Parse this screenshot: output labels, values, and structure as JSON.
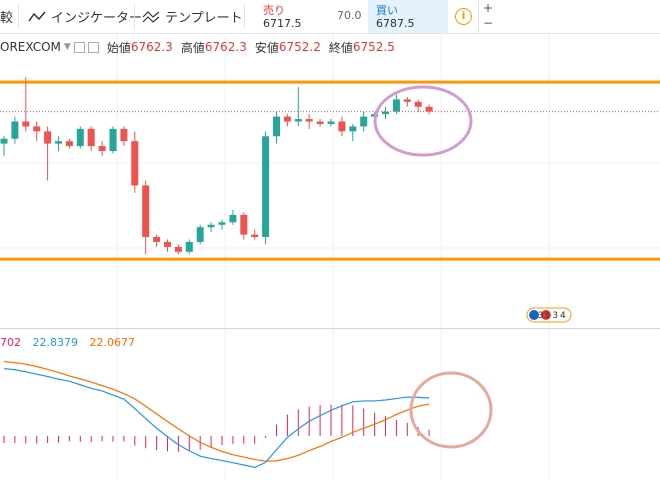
{
  "toolbar": {
    "compare_label": "較",
    "indicators_label": "インジケーター",
    "templates_label": "テンプレート"
  },
  "trade": {
    "sell_label": "売り",
    "sell_price": "6717.5",
    "spread": "70.0",
    "buy_label": "買い",
    "buy_price": "6787.5"
  },
  "zoom": {
    "plus": "+",
    "minus": "−"
  },
  "legend": {
    "symbol": "OREXCOM",
    "open_label": "始値",
    "open": "6762.3",
    "high_label": "高値",
    "high": "6762.3",
    "low_label": "安値",
    "low": "6752.2",
    "close_label": "終値",
    "close": "6752.5"
  },
  "event_badge": {
    "text": "33 3",
    "count": "4"
  },
  "macd_legend": {
    "hist": "702",
    "macd": "22.8379",
    "signal": "22.0677"
  },
  "colors": {
    "up": "#26a69a",
    "down": "#ef5350",
    "orange_line": "#ff9800",
    "macd_line": "#2196f3",
    "signal_line": "#ff6d00",
    "hist": "#e91e63",
    "ellipse_top": "#d59bd0",
    "ellipse_bottom": "#e8a899"
  },
  "chart_data": {
    "type": "candlestick",
    "candles": [
      {
        "o": 6755,
        "h": 6758,
        "l": 6750,
        "c": 6757
      },
      {
        "o": 6757,
        "h": 6766,
        "l": 6755,
        "c": 6764
      },
      {
        "o": 6764,
        "h": 6782,
        "l": 6760,
        "c": 6762
      },
      {
        "o": 6762,
        "h": 6764,
        "l": 6756,
        "c": 6760
      },
      {
        "o": 6760,
        "h": 6762,
        "l": 6740,
        "c": 6755
      },
      {
        "o": 6755,
        "h": 6758,
        "l": 6752,
        "c": 6756
      },
      {
        "o": 6756,
        "h": 6757,
        "l": 6753,
        "c": 6754
      },
      {
        "o": 6754,
        "h": 6762,
        "l": 6753,
        "c": 6761
      },
      {
        "o": 6761,
        "h": 6762,
        "l": 6752,
        "c": 6754
      },
      {
        "o": 6754,
        "h": 6756,
        "l": 6750,
        "c": 6752
      },
      {
        "o": 6752,
        "h": 6762,
        "l": 6751,
        "c": 6761
      },
      {
        "o": 6761,
        "h": 6762,
        "l": 6754,
        "c": 6756
      },
      {
        "o": 6756,
        "h": 6760,
        "l": 6735,
        "c": 6738
      },
      {
        "o": 6738,
        "h": 6740,
        "l": 6710,
        "c": 6717
      },
      {
        "o": 6717,
        "h": 6718,
        "l": 6713,
        "c": 6715
      },
      {
        "o": 6715,
        "h": 6716,
        "l": 6711,
        "c": 6713
      },
      {
        "o": 6713,
        "h": 6714,
        "l": 6710,
        "c": 6711
      },
      {
        "o": 6711,
        "h": 6716,
        "l": 6710,
        "c": 6715
      },
      {
        "o": 6715,
        "h": 6722,
        "l": 6714,
        "c": 6721
      },
      {
        "o": 6721,
        "h": 6723,
        "l": 6719,
        "c": 6722
      },
      {
        "o": 6722,
        "h": 6724,
        "l": 6720,
        "c": 6723
      },
      {
        "o": 6723,
        "h": 6728,
        "l": 6722,
        "c": 6726
      },
      {
        "o": 6726,
        "h": 6727,
        "l": 6716,
        "c": 6718
      },
      {
        "o": 6718,
        "h": 6720,
        "l": 6716,
        "c": 6717
      },
      {
        "o": 6717,
        "h": 6760,
        "l": 6714,
        "c": 6758
      },
      {
        "o": 6758,
        "h": 6768,
        "l": 6755,
        "c": 6766
      },
      {
        "o": 6766,
        "h": 6767,
        "l": 6762,
        "c": 6764
      },
      {
        "o": 6764,
        "h": 6778,
        "l": 6762,
        "c": 6765
      },
      {
        "o": 6765,
        "h": 6767,
        "l": 6761,
        "c": 6764
      },
      {
        "o": 6764,
        "h": 6765,
        "l": 6762,
        "c": 6763
      },
      {
        "o": 6763,
        "h": 6765,
        "l": 6762,
        "c": 6764
      },
      {
        "o": 6764,
        "h": 6766,
        "l": 6758,
        "c": 6760
      },
      {
        "o": 6760,
        "h": 6763,
        "l": 6756,
        "c": 6762
      },
      {
        "o": 6762,
        "h": 6768,
        "l": 6760,
        "c": 6766
      },
      {
        "o": 6766,
        "h": 6768,
        "l": 6764,
        "c": 6767
      },
      {
        "o": 6767,
        "h": 6770,
        "l": 6765,
        "c": 6768
      },
      {
        "o": 6768,
        "h": 6775,
        "l": 6767,
        "c": 6773
      },
      {
        "o": 6773,
        "h": 6774,
        "l": 6770,
        "c": 6772
      },
      {
        "o": 6772,
        "h": 6773,
        "l": 6768,
        "c": 6770
      },
      {
        "o": 6770,
        "h": 6771,
        "l": 6767,
        "c": 6768
      }
    ],
    "levels": [
      6780,
      6708
    ],
    "ylim": [
      6680,
      6800
    ],
    "macd": [
      22.9,
      22.5,
      21.8,
      21.0,
      20.2,
      19.3,
      18.6,
      17.4,
      16.2,
      15.3,
      13.9,
      12.5,
      9.3,
      5.9,
      2.6,
      -0.3,
      -3.0,
      -5.1,
      -6.9,
      -7.7,
      -8.4,
      -9.1,
      -9.9,
      -10.7,
      -9.0,
      -4.7,
      -0.5,
      2.4,
      5.0,
      6.9,
      8.7,
      10.2,
      11.6,
      11.9,
      11.9,
      12.2,
      12.7,
      13.2,
      13.1,
      12.9
    ],
    "signal": [
      25.3,
      24.9,
      24.4,
      23.6,
      22.6,
      21.6,
      20.4,
      19.4,
      18.3,
      17.1,
      15.9,
      14.4,
      12.6,
      10.1,
      7.5,
      4.9,
      2.4,
      0.0,
      -2.2,
      -3.9,
      -5.3,
      -6.4,
      -7.2,
      -8.0,
      -8.6,
      -8.5,
      -7.7,
      -6.6,
      -5.0,
      -3.6,
      -1.9,
      -0.5,
      1.2,
      2.6,
      4.0,
      5.5,
      7.3,
      8.8,
      10.1,
      10.8
    ],
    "macd_ylim": [
      -15,
      35
    ]
  }
}
